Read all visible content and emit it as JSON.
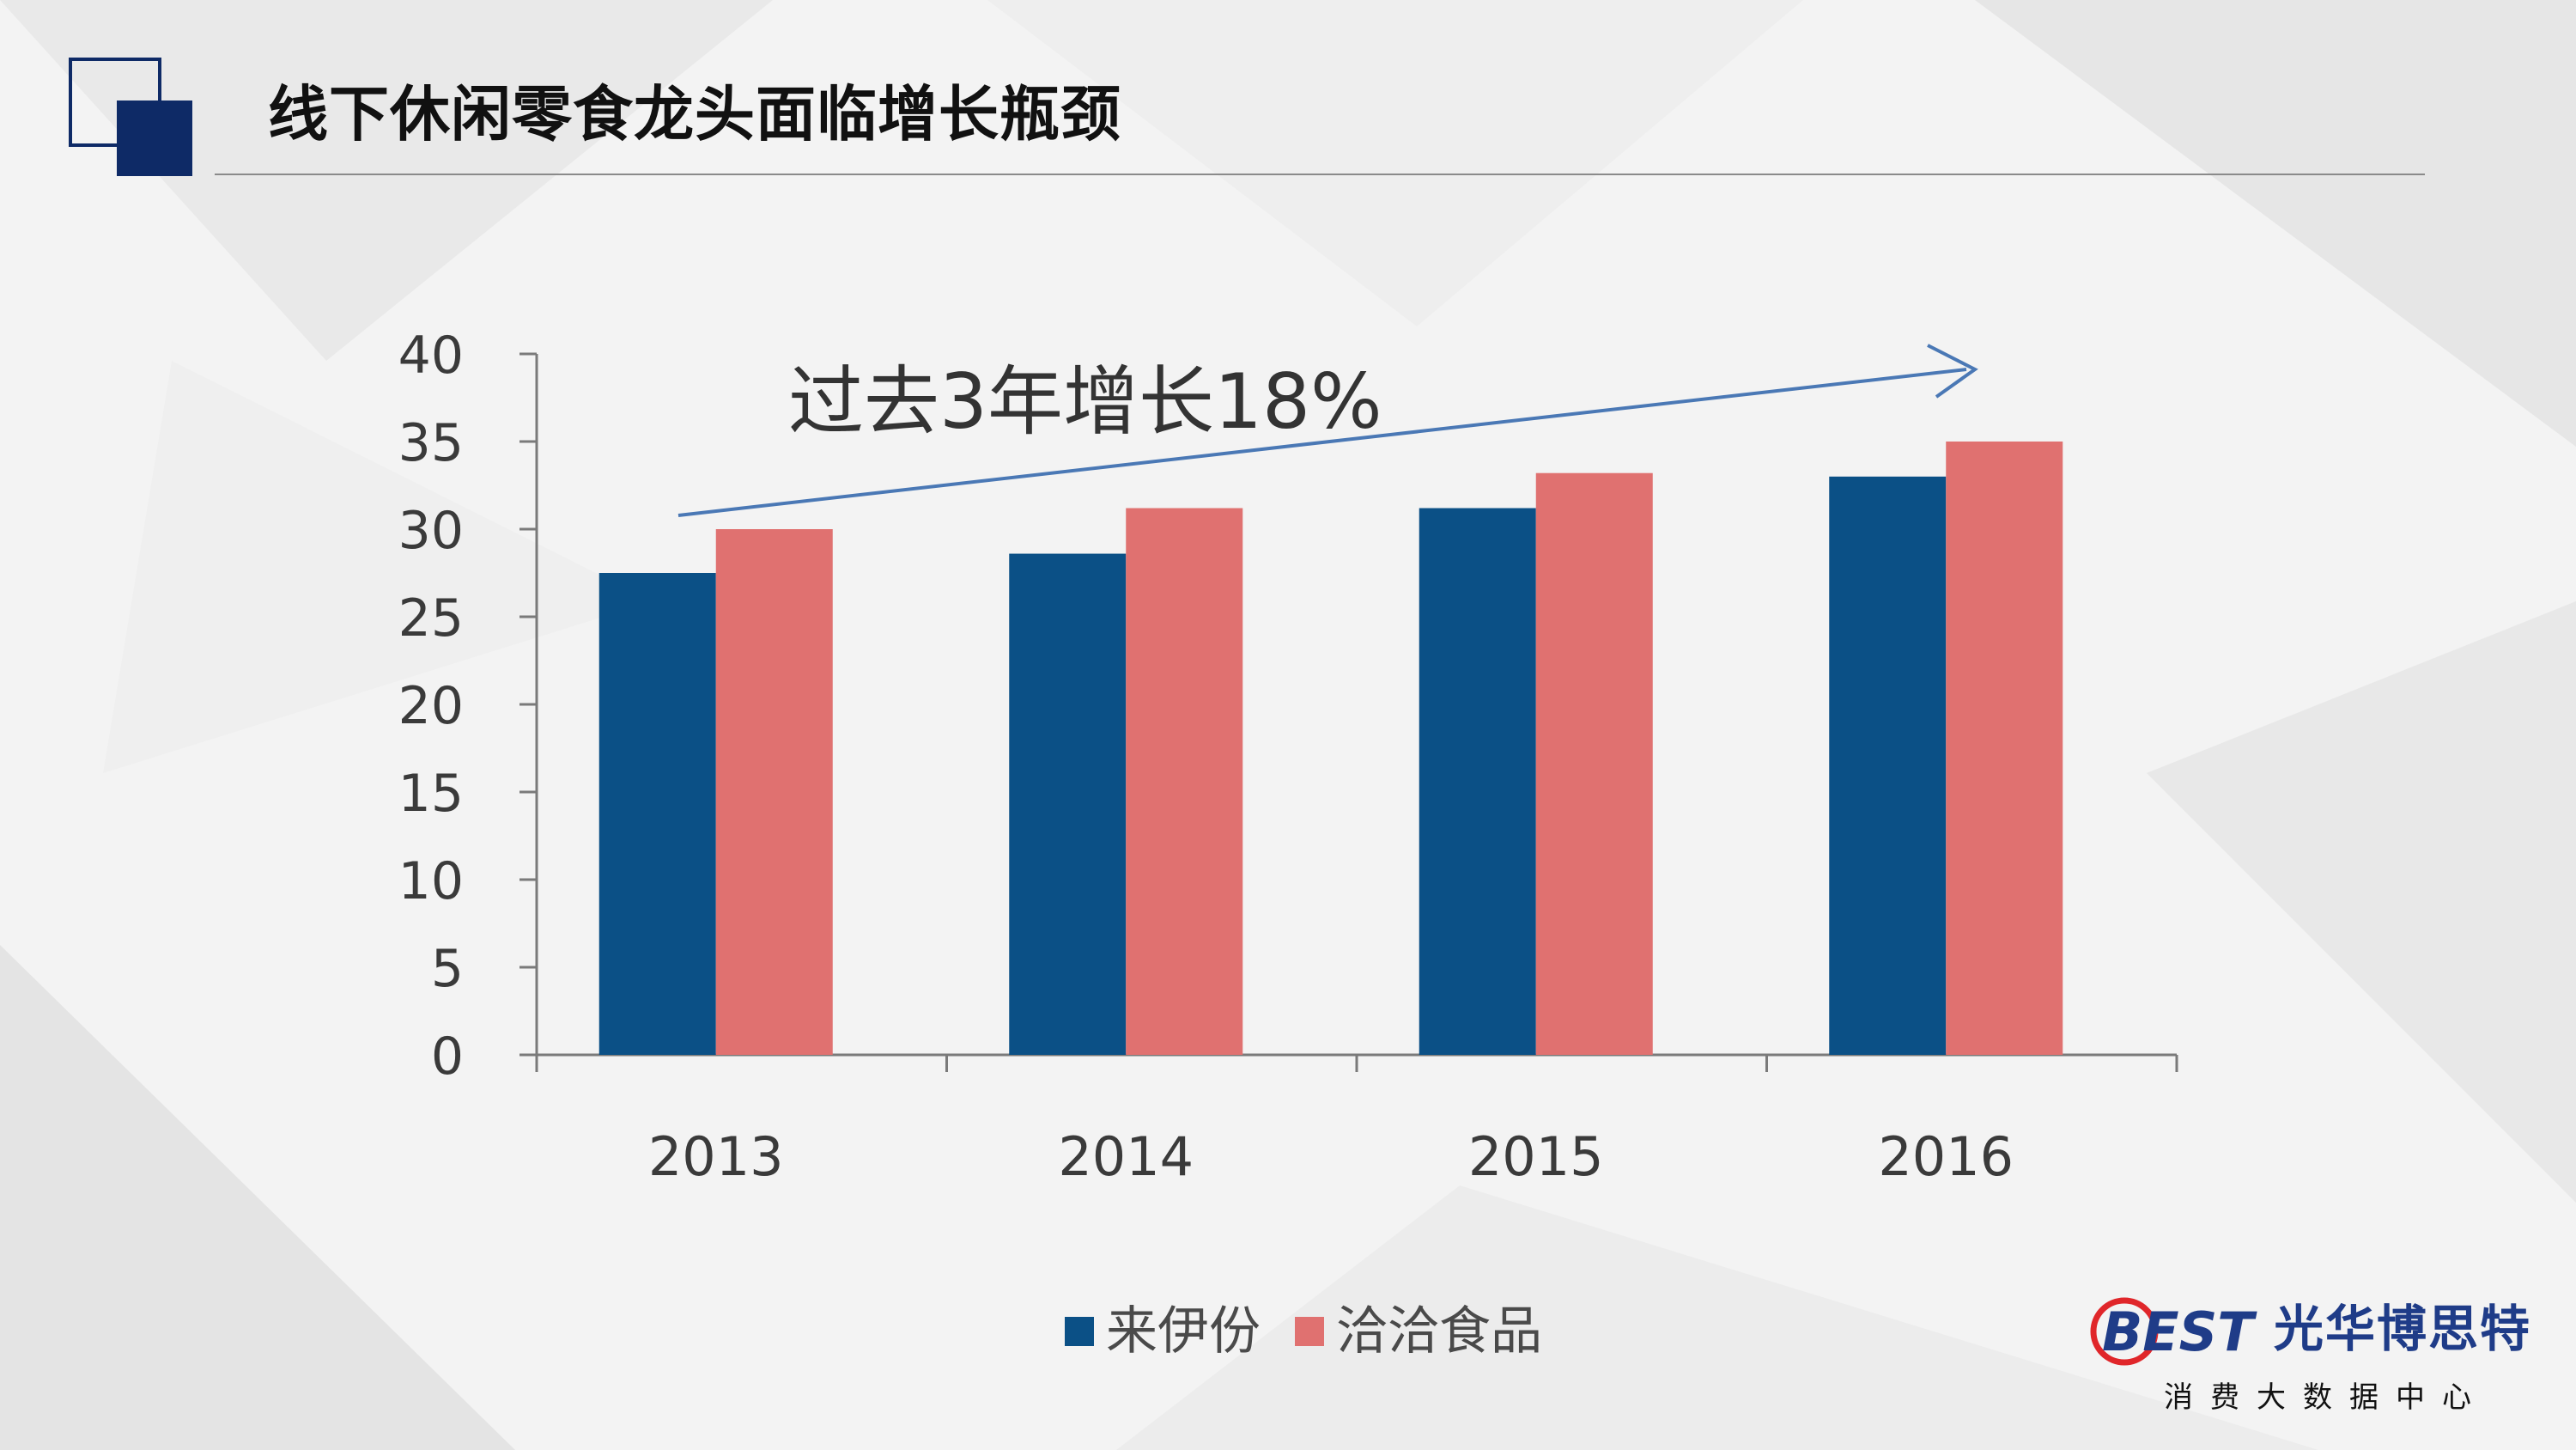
{
  "slide": {
    "title": "线下休闲零食龙头面临增长瓶颈"
  },
  "chart_data": {
    "type": "bar",
    "categories": [
      "2013",
      "2014",
      "2015",
      "2016"
    ],
    "series": [
      {
        "name": "来伊份",
        "values": [
          27.5,
          28.6,
          31.2,
          33.0
        ],
        "color": "#0b5086"
      },
      {
        "name": "洽洽食品",
        "values": [
          30.0,
          31.2,
          33.2,
          35.0
        ],
        "color": "#e07170"
      }
    ],
    "ylim": [
      0,
      40
    ],
    "yticks": [
      0,
      5,
      10,
      15,
      20,
      25,
      30,
      35,
      40
    ],
    "annotation": "过去3年增长18%",
    "legend_position": "bottom-center"
  },
  "brand": {
    "logo_text": "BEST",
    "name": "光华博思特",
    "subtitle": "消费大数据中心"
  },
  "colors": {
    "title_icon": "#0e2a66",
    "axis": "#7a7a7a",
    "arrow": "#4a78b5",
    "brand": "#1f3c88",
    "brand_accent": "#e0262a"
  }
}
